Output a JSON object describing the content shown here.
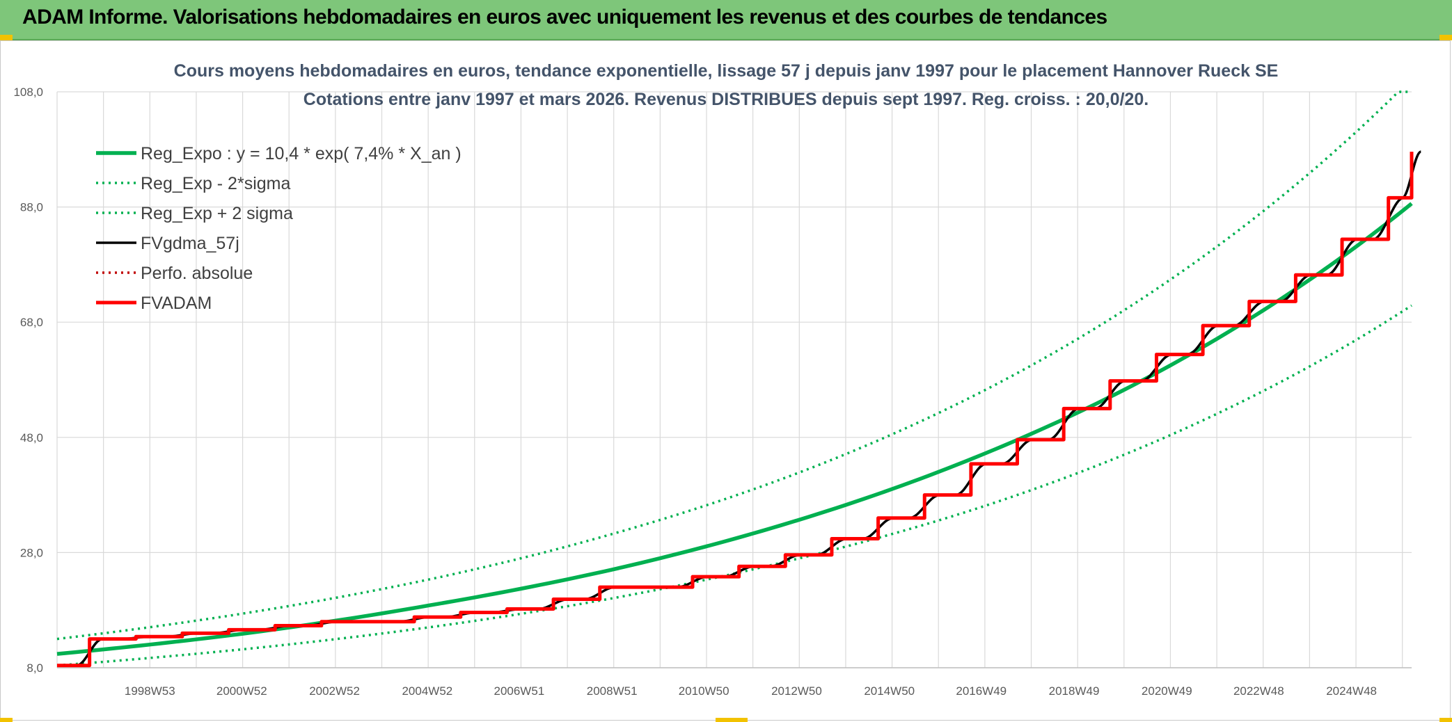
{
  "banner": {
    "title": "ADAM Informe. Valorisations hebdomadaires en euros avec uniquement les revenus et des courbes de tendances"
  },
  "colors": {
    "banner_bg": "#7ec67a",
    "reg_expo": "#00b050",
    "fvgdma": "#000000",
    "fvadam": "#ff0000",
    "perfo": "#c00000",
    "grid": "#d9d9d9"
  },
  "chart_data": {
    "type": "line",
    "title": "Cours moyens hebdomadaires en euros, tendance exponentielle, lissage 57 j depuis janv 1997 pour le placement Hannover Rueck SE",
    "subtitle": "Cotations entre janv 1997 et mars 2026. Revenus DISTRIBUES depuis sept 1997. Reg. croiss. : 20,0/20.",
    "xlabel": "",
    "ylabel": "",
    "x_range": [
      "1997W02",
      "2026W11"
    ],
    "ylim": [
      8.0,
      108.0
    ],
    "y_ticks": [
      "8,0",
      "28,0",
      "48,0",
      "68,0",
      "88,0",
      "108,0"
    ],
    "x_ticks": [
      "1998W53",
      "2000W52",
      "2002W52",
      "2004W52",
      "2006W51",
      "2008W51",
      "2010W50",
      "2012W50",
      "2014W50",
      "2016W49",
      "2018W49",
      "2020W49",
      "2022W48",
      "2024W48"
    ],
    "grid": true,
    "legend_position": "top-left",
    "series": [
      {
        "name": "Reg_Expo : y = 10,4 * exp( 7,4% *  X_an )",
        "style": "solid-thick",
        "color": "#00b050",
        "x": [
          "1997",
          "2001",
          "2005",
          "2009",
          "2013",
          "2017",
          "2021",
          "2025",
          "2026.2"
        ],
        "values": [
          10.4,
          13.9,
          18.8,
          25.1,
          33.7,
          45.2,
          60.5,
          81.1,
          88.6
        ]
      },
      {
        "name": "Reg_Exp - 2*sigma",
        "style": "dotted",
        "color": "#00b050",
        "x": [
          "1997",
          "2001",
          "2005",
          "2009",
          "2013",
          "2017",
          "2021",
          "2025",
          "2026.2"
        ],
        "values": [
          8.4,
          11.2,
          15.0,
          20.1,
          27.0,
          36.1,
          48.4,
          64.9,
          70.9
        ]
      },
      {
        "name": "Reg_Exp + 2 sigma",
        "style": "dotted",
        "color": "#00b050",
        "x": [
          "1997",
          "2001",
          "2005",
          "2009",
          "2013",
          "2017",
          "2021",
          "2025",
          "2026.2"
        ],
        "values": [
          13.0,
          17.4,
          23.3,
          31.3,
          41.9,
          56.2,
          75.4,
          101.0,
          110.3
        ]
      },
      {
        "name": "FVgdma_57j",
        "style": "solid",
        "color": "#000000",
        "x": [
          "1997",
          "1997.7",
          "1998.7",
          "1999.7",
          "2000.7",
          "2001.7",
          "2002.7",
          "2003.7",
          "2004.7",
          "2005.7",
          "2006.7",
          "2007.7",
          "2008.7",
          "2009.7",
          "2010.7",
          "2011.7",
          "2012.7",
          "2013.7",
          "2014.7",
          "2015.7",
          "2016.7",
          "2017.7",
          "2018.7",
          "2019.7",
          "2020.7",
          "2021.7",
          "2022.7",
          "2023.7",
          "2024.7",
          "2025.7",
          "2026.2"
        ],
        "values": [
          8.4,
          13.0,
          13.4,
          14.0,
          14.6,
          15.3,
          16.0,
          16.0,
          16.8,
          17.6,
          18.2,
          19.9,
          22.0,
          22.0,
          23.8,
          25.6,
          27.6,
          30.4,
          34.0,
          38.0,
          43.4,
          47.6,
          53.0,
          57.8,
          62.4,
          67.4,
          71.6,
          76.2,
          82.4,
          89.6,
          97.6
        ]
      },
      {
        "name": "Perfo. absolue",
        "style": "dotted",
        "color": "#c00000",
        "x": [],
        "values": []
      },
      {
        "name": "FVADAM",
        "style": "step-thick",
        "color": "#ff0000",
        "x": [
          "1997",
          "1997.7",
          "1998.7",
          "1999.7",
          "2000.7",
          "2001.7",
          "2002.7",
          "2003.7",
          "2004.7",
          "2005.7",
          "2006.7",
          "2007.7",
          "2008.7",
          "2009.7",
          "2010.7",
          "2011.7",
          "2012.7",
          "2013.7",
          "2014.7",
          "2015.7",
          "2016.7",
          "2017.7",
          "2018.7",
          "2019.7",
          "2020.7",
          "2021.7",
          "2022.7",
          "2023.7",
          "2024.7",
          "2025.7",
          "2026.2"
        ],
        "values": [
          8.4,
          13.0,
          13.4,
          14.0,
          14.6,
          15.3,
          16.0,
          16.0,
          16.8,
          17.6,
          18.2,
          19.9,
          22.0,
          22.0,
          23.8,
          25.6,
          27.6,
          30.4,
          34.0,
          38.0,
          43.4,
          47.6,
          53.0,
          57.8,
          62.4,
          67.4,
          71.6,
          76.2,
          82.4,
          89.6,
          97.6
        ]
      }
    ]
  }
}
